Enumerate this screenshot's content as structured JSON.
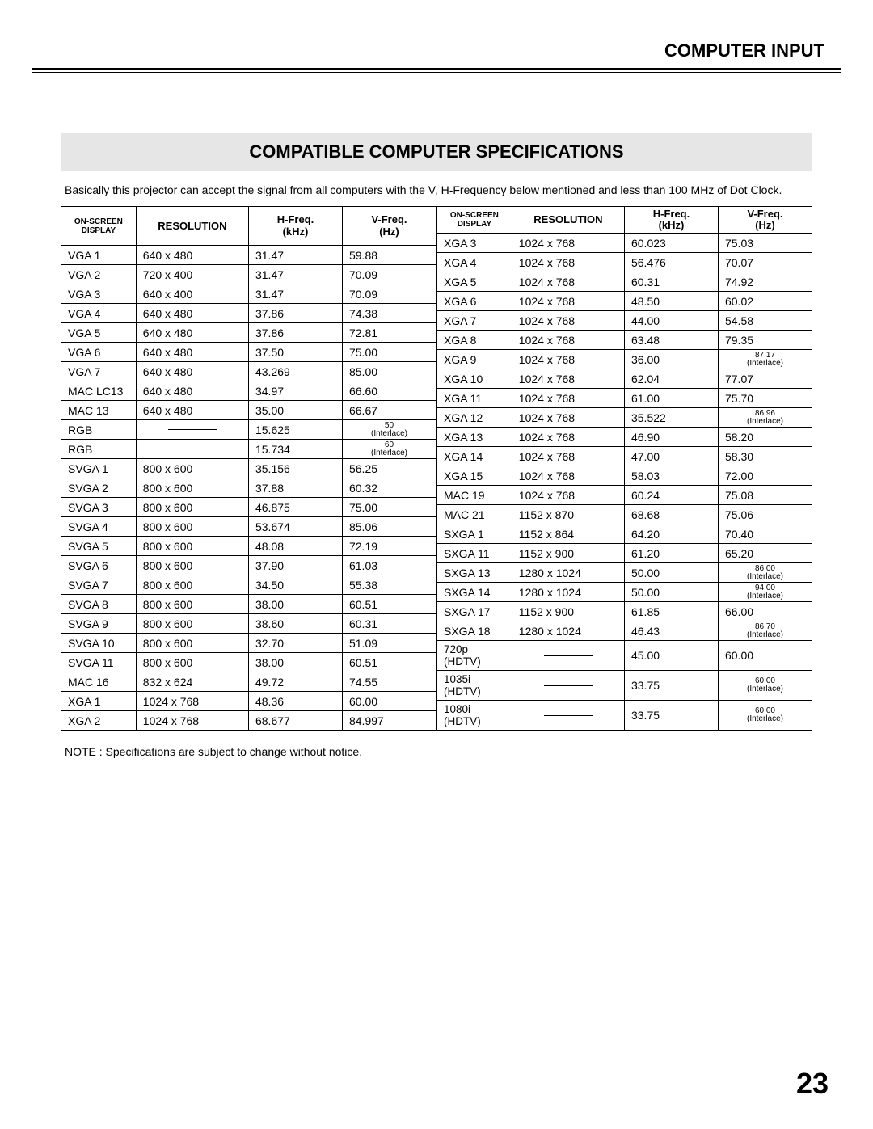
{
  "header": "COMPUTER INPUT",
  "section_title": "COMPATIBLE COMPUTER SPECIFICATIONS",
  "intro": "Basically this projector can accept the signal from all computers with the V, H-Frequency below mentioned and less than 100 MHz of Dot Clock.",
  "columns": {
    "display": "ON-SCREEN DISPLAY",
    "resolution": "RESOLUTION",
    "hfreq": "H-Freq.",
    "hfreq_unit": "(kHz)",
    "vfreq": "V-Freq.",
    "vfreq_unit": "(Hz)"
  },
  "left_rows": [
    {
      "d": "VGA 1",
      "r": "640 x 480",
      "h": "31.47",
      "v": "59.88"
    },
    {
      "d": "VGA 2",
      "r": "720 x 400",
      "h": "31.47",
      "v": "70.09"
    },
    {
      "d": "VGA 3",
      "r": "640 x 400",
      "h": "31.47",
      "v": "70.09"
    },
    {
      "d": "VGA 4",
      "r": "640 x 480",
      "h": "37.86",
      "v": "74.38"
    },
    {
      "d": "VGA 5",
      "r": "640 x 480",
      "h": "37.86",
      "v": "72.81"
    },
    {
      "d": "VGA 6",
      "r": "640 x 480",
      "h": "37.50",
      "v": "75.00"
    },
    {
      "d": "VGA 7",
      "r": "640 x 480",
      "h": "43.269",
      "v": "85.00"
    },
    {
      "d": "MAC LC13",
      "r": "640 x 480",
      "h": "34.97",
      "v": "66.60"
    },
    {
      "d": "MAC 13",
      "r": "640 x 480",
      "h": "35.00",
      "v": "66.67"
    },
    {
      "d": "RGB",
      "r": "—",
      "h": "15.625",
      "v": "50",
      "interlace": true
    },
    {
      "d": "RGB",
      "r": "—",
      "h": "15.734",
      "v": "60",
      "interlace": true
    },
    {
      "d": "SVGA 1",
      "r": "800 x 600",
      "h": "35.156",
      "v": "56.25"
    },
    {
      "d": "SVGA 2",
      "r": "800 x 600",
      "h": "37.88",
      "v": "60.32"
    },
    {
      "d": "SVGA 3",
      "r": "800 x 600",
      "h": "46.875",
      "v": "75.00"
    },
    {
      "d": "SVGA 4",
      "r": "800 x 600",
      "h": "53.674",
      "v": "85.06"
    },
    {
      "d": "SVGA 5",
      "r": "800 x 600",
      "h": "48.08",
      "v": "72.19"
    },
    {
      "d": "SVGA 6",
      "r": "800 x 600",
      "h": "37.90",
      "v": "61.03"
    },
    {
      "d": "SVGA 7",
      "r": "800 x 600",
      "h": "34.50",
      "v": "55.38"
    },
    {
      "d": "SVGA 8",
      "r": "800 x 600",
      "h": "38.00",
      "v": "60.51"
    },
    {
      "d": "SVGA 9",
      "r": "800 x 600",
      "h": "38.60",
      "v": "60.31"
    },
    {
      "d": "SVGA 10",
      "r": "800 x 600",
      "h": "32.70",
      "v": "51.09"
    },
    {
      "d": "SVGA 11",
      "r": "800 x 600",
      "h": "38.00",
      "v": "60.51"
    },
    {
      "d": "MAC 16",
      "r": "832 x 624",
      "h": "49.72",
      "v": "74.55"
    },
    {
      "d": "XGA 1",
      "r": "1024 x 768",
      "h": "48.36",
      "v": "60.00"
    },
    {
      "d": "XGA 2",
      "r": "1024 x 768",
      "h": "68.677",
      "v": "84.997"
    }
  ],
  "right_rows": [
    {
      "d": "XGA 3",
      "r": "1024 x 768",
      "h": "60.023",
      "v": "75.03"
    },
    {
      "d": "XGA 4",
      "r": "1024 x 768",
      "h": "56.476",
      "v": "70.07"
    },
    {
      "d": "XGA 5",
      "r": "1024 x 768",
      "h": "60.31",
      "v": "74.92"
    },
    {
      "d": "XGA 6",
      "r": "1024 x 768",
      "h": "48.50",
      "v": "60.02"
    },
    {
      "d": "XGA 7",
      "r": "1024 x 768",
      "h": "44.00",
      "v": "54.58"
    },
    {
      "d": "XGA 8",
      "r": "1024 x 768",
      "h": "63.48",
      "v": "79.35"
    },
    {
      "d": "XGA 9",
      "r": "1024 x 768",
      "h": "36.00",
      "v": "87.17",
      "interlace": true
    },
    {
      "d": "XGA 10",
      "r": "1024 x 768",
      "h": "62.04",
      "v": "77.07"
    },
    {
      "d": "XGA 11",
      "r": "1024 x 768",
      "h": "61.00",
      "v": "75.70"
    },
    {
      "d": "XGA 12",
      "r": "1024 x 768",
      "h": "35.522",
      "v": "86.96",
      "interlace": true
    },
    {
      "d": "XGA 13",
      "r": "1024 x 768",
      "h": "46.90",
      "v": "58.20"
    },
    {
      "d": "XGA 14",
      "r": "1024 x 768",
      "h": "47.00",
      "v": "58.30"
    },
    {
      "d": "XGA 15",
      "r": "1024 x 768",
      "h": "58.03",
      "v": "72.00"
    },
    {
      "d": "MAC 19",
      "r": "1024 x 768",
      "h": "60.24",
      "v": "75.08"
    },
    {
      "d": "MAC 21",
      "r": "1152 x 870",
      "h": "68.68",
      "v": "75.06"
    },
    {
      "d": "SXGA 1",
      "r": "1152 x 864",
      "h": "64.20",
      "v": "70.40"
    },
    {
      "d": "SXGA 11",
      "r": "1152 x 900",
      "h": "61.20",
      "v": "65.20"
    },
    {
      "d": "SXGA 13",
      "r": "1280 x 1024",
      "h": "50.00",
      "v": "86.00",
      "interlace": true
    },
    {
      "d": "SXGA 14",
      "r": "1280 x 1024",
      "h": "50.00",
      "v": "94.00",
      "interlace": true
    },
    {
      "d": "SXGA 17",
      "r": "1152 x 900",
      "h": "61.85",
      "v": "66.00"
    },
    {
      "d": "SXGA 18",
      "r": "1280 x 1024",
      "h": "46.43",
      "v": "86.70",
      "interlace": true
    },
    {
      "d": "720p (HDTV)",
      "r": "—",
      "h": "45.00",
      "v": "60.00",
      "small": true
    },
    {
      "d": "1035i (HDTV)",
      "r": "—",
      "h": "33.75",
      "v": "60.00",
      "interlace": true,
      "small": true
    },
    {
      "d": "1080i (HDTV)",
      "r": "—",
      "h": "33.75",
      "v": "60.00",
      "interlace": true,
      "small": true
    }
  ],
  "note": "NOTE : Specifications are subject to change without notice.",
  "page_number": "23",
  "interlace_label": "(Interlace)"
}
